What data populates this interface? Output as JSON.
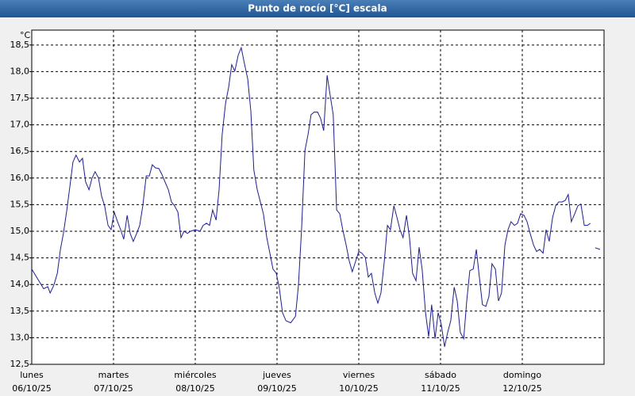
{
  "chart_data": {
    "type": "line",
    "title": "Punto de rocío [°C] escala",
    "y_unit": "°C",
    "xlim": [
      0,
      168
    ],
    "ylim": [
      12.5,
      18.78
    ],
    "grid": true,
    "xticks": [
      {
        "value": 0,
        "label": [
          "lunes",
          "06/10/25"
        ]
      },
      {
        "value": 24,
        "label": [
          "martes",
          "07/10/25"
        ]
      },
      {
        "value": 48,
        "label": [
          "miércoles",
          "08/10/25"
        ]
      },
      {
        "value": 72,
        "label": [
          "jueves",
          "09/10/25"
        ]
      },
      {
        "value": 96,
        "label": [
          "viernes",
          "10/10/25"
        ]
      },
      {
        "value": 120,
        "label": [
          "sábado",
          "11/10/25"
        ]
      },
      {
        "value": 144,
        "label": [
          "domingo",
          "12/10/25"
        ]
      }
    ],
    "yticks": [
      {
        "value": 12.5,
        "label": "12,5"
      },
      {
        "value": 13,
        "label": "13,0"
      },
      {
        "value": 13.5,
        "label": "13,5"
      },
      {
        "value": 14,
        "label": "14,0"
      },
      {
        "value": 14.5,
        "label": "14,5"
      },
      {
        "value": 15,
        "label": "15,0"
      },
      {
        "value": 15.5,
        "label": "15,5"
      },
      {
        "value": 16,
        "label": "16,0"
      },
      {
        "value": 16.5,
        "label": "16,5"
      },
      {
        "value": 17,
        "label": "17,0"
      },
      {
        "value": 17.5,
        "label": "17,5"
      },
      {
        "value": 18,
        "label": "18,0"
      },
      {
        "value": 18.5,
        "label": "18,5"
      }
    ],
    "series": [
      {
        "color": "#1c1ca8",
        "x": [
          0,
          1.4,
          3.5,
          4.7,
          5.4,
          6.5,
          7.5,
          8.4,
          9.3,
          10.3,
          11.2,
          12.1,
          13.0,
          14.0,
          14.9,
          15.8,
          16.8,
          17.7,
          18.6,
          19.6,
          20.5,
          21.4,
          22.4,
          23.3,
          24.2,
          25.2,
          26.1,
          27.0,
          28.0,
          28.9,
          29.8,
          30.8,
          31.7,
          32.6,
          33.6,
          34.5,
          35.4,
          36.3,
          37.3,
          38.2,
          39.1,
          40.1,
          41.0,
          41.9,
          42.9,
          43.8,
          44.7,
          45.7,
          46.6,
          48.0,
          49.4,
          50.3,
          51.3,
          52.2,
          53.1,
          54.1,
          55.0,
          55.9,
          56.9,
          57.8,
          58.7,
          59.6,
          60.6,
          61.5,
          62.4,
          63.4,
          64.3,
          65.2,
          66.2,
          67.1,
          68.0,
          69.0,
          69.9,
          70.8,
          71.8,
          72.7,
          73.6,
          74.6,
          76.0,
          77.4,
          78.3,
          79.2,
          80.2,
          81.1,
          82.0,
          82.9,
          83.9,
          84.8,
          85.7,
          86.7,
          87.6,
          88.5,
          89.5,
          90.4,
          91.3,
          92.3,
          93.2,
          94.1,
          95.1,
          96.0,
          96.9,
          97.9,
          98.8,
          99.7,
          100.7,
          101.6,
          102.5,
          103.5,
          104.4,
          105.3,
          106.3,
          107.2,
          108.1,
          109.0,
          110.0,
          110.9,
          111.8,
          112.8,
          113.7,
          114.6,
          115.6,
          116.5,
          117.4,
          118.4,
          119.3,
          120.2,
          121.2,
          122.1,
          123.0,
          124.0,
          124.9,
          125.8,
          126.8,
          127.7,
          128.6,
          129.6,
          130.5,
          131.4,
          132.3,
          133.3,
          134.2,
          135.1,
          136.1,
          137.0,
          137.9,
          138.9,
          139.8,
          140.7,
          141.7,
          142.6,
          143.5,
          144.5,
          145.4,
          146.3,
          147.3,
          148.2,
          149.1,
          150.1,
          151.0,
          151.9,
          152.9,
          153.8,
          154.7,
          155.7,
          156.6,
          157.5,
          158.4,
          159.4,
          160.3,
          161.2,
          162.2,
          163.1,
          164.0,
          164.7,
          165.4,
          166.8
        ],
        "values": [
          14.29,
          14.14,
          13.92,
          13.96,
          13.84,
          13.99,
          14.21,
          14.66,
          14.96,
          15.4,
          15.85,
          16.3,
          16.43,
          16.3,
          16.37,
          15.93,
          15.78,
          16.0,
          16.12,
          16.0,
          15.66,
          15.48,
          15.11,
          15.03,
          15.36,
          15.18,
          15.03,
          14.85,
          15.3,
          14.96,
          14.81,
          14.96,
          15.11,
          15.48,
          16.04,
          16.04,
          16.25,
          16.19,
          16.18,
          16.07,
          15.93,
          15.78,
          15.55,
          15.48,
          15.36,
          14.88,
          15.0,
          14.96,
          15.0,
          15.03,
          15.0,
          15.11,
          15.15,
          15.11,
          15.4,
          15.21,
          15.78,
          16.82,
          17.41,
          17.71,
          18.13,
          18.01,
          18.31,
          18.45,
          18.16,
          17.86,
          17.26,
          16.15,
          15.78,
          15.55,
          15.33,
          14.88,
          14.59,
          14.29,
          14.21,
          13.92,
          13.47,
          13.32,
          13.28,
          13.4,
          13.99,
          15.03,
          16.52,
          16.82,
          17.19,
          17.24,
          17.24,
          17.12,
          16.89,
          17.93,
          17.56,
          17.19,
          15.4,
          15.33,
          15.03,
          14.74,
          14.44,
          14.24,
          14.44,
          14.62,
          14.59,
          14.51,
          14.14,
          14.21,
          13.84,
          13.65,
          13.84,
          14.44,
          15.11,
          15.03,
          15.48,
          15.26,
          15.03,
          14.88,
          15.3,
          14.88,
          14.21,
          14.07,
          14.7,
          14.29,
          13.47,
          13.02,
          13.62,
          12.98,
          13.47,
          13.25,
          12.83,
          13.1,
          13.32,
          13.95,
          13.69,
          13.1,
          12.98,
          13.69,
          14.26,
          14.29,
          14.66,
          14.14,
          13.62,
          13.59,
          13.77,
          14.39,
          14.29,
          13.69,
          13.84,
          14.74,
          15.03,
          15.18,
          15.11,
          15.15,
          15.33,
          15.3,
          15.18,
          14.96,
          14.74,
          14.62,
          14.66,
          14.59,
          15.03,
          14.81,
          15.26,
          15.48,
          15.55,
          15.55,
          15.58,
          15.69,
          15.18,
          15.33,
          15.48,
          15.51,
          15.11,
          15.11,
          15.15,
          null,
          14.69,
          14.66
        ]
      }
    ]
  }
}
